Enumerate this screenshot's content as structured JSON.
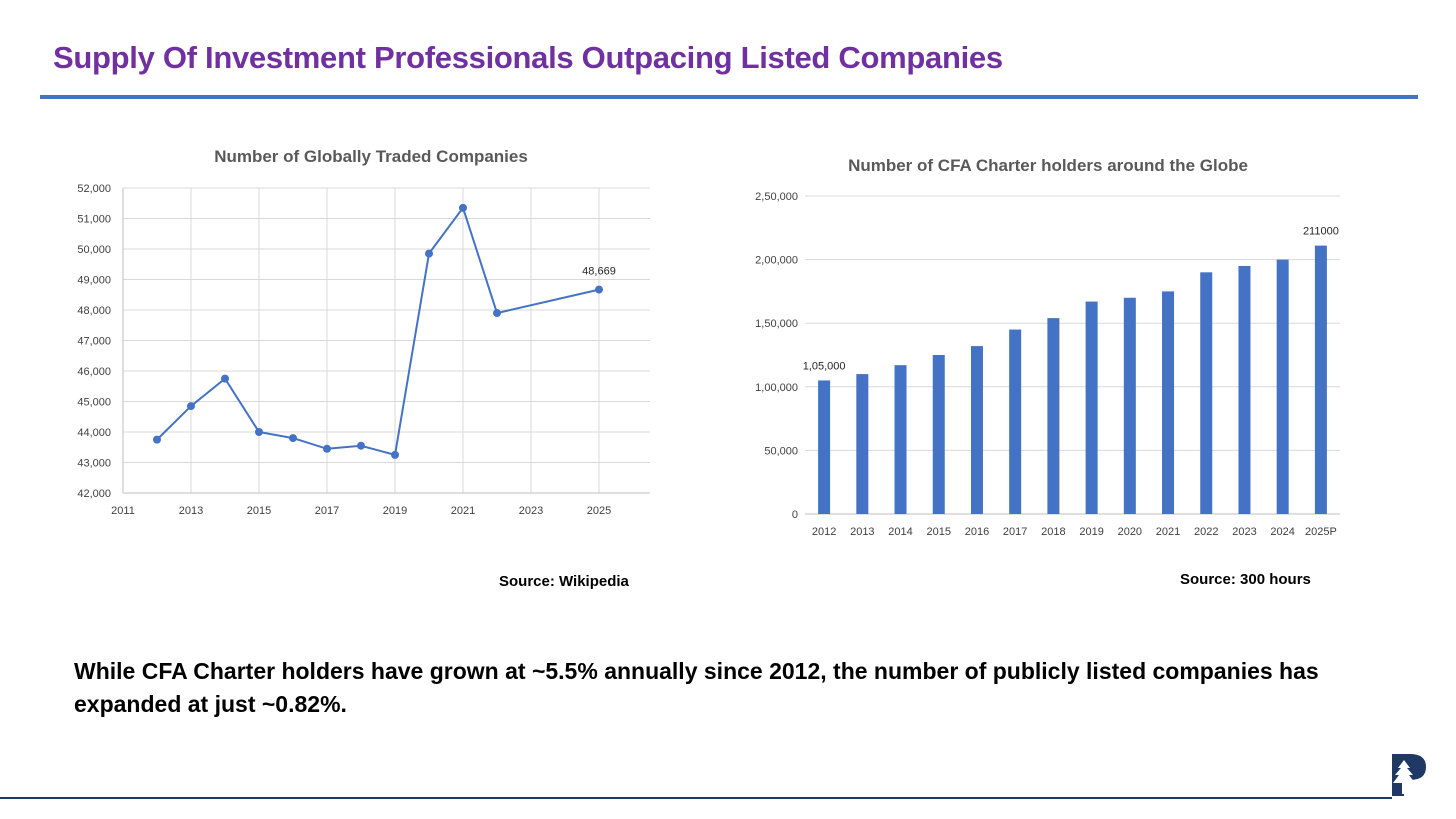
{
  "slide": {
    "title": "Supply Of Investment Professionals Outpacing Listed Companies",
    "summary": "While CFA Charter holders have grown at ~5.5% annually since 2012, the number of publicly listed companies has expanded at just ~0.82%.",
    "logo_icon": "pine-tree-p-logo-icon"
  },
  "colors": {
    "title": "#7030a0",
    "accent": "#4472c4",
    "series": "#4472c4",
    "grid": "#d9d9d9",
    "footer_rule": "#1f3864"
  },
  "chart_data": [
    {
      "type": "line",
      "title": "Number of Globally Traded Companies",
      "xlabel": "",
      "ylabel": "",
      "x": [
        2012,
        2013,
        2014,
        2015,
        2016,
        2017,
        2018,
        2019,
        2020,
        2021,
        2022,
        2025
      ],
      "values": [
        43750,
        44850,
        45750,
        44000,
        43800,
        43450,
        43550,
        43250,
        49850,
        51350,
        47900,
        48669
      ],
      "xlim": [
        2011,
        2026.5
      ],
      "ylim": [
        42000,
        52000
      ],
      "x_ticks": [
        "2011",
        "2013",
        "2015",
        "2017",
        "2019",
        "2021",
        "2023",
        "2025"
      ],
      "y_ticks": [
        "42,000",
        "43,000",
        "44,000",
        "45,000",
        "46,000",
        "47,000",
        "48,000",
        "49,000",
        "50,000",
        "51,000",
        "52,000"
      ],
      "grid": true,
      "annotations": [
        {
          "index": 11,
          "label": "48,669"
        }
      ],
      "source": "Source: Wikipedia"
    },
    {
      "type": "bar",
      "title": "Number of CFA Charter holders around the Globe",
      "xlabel": "",
      "ylabel": "",
      "categories": [
        "2012",
        "2013",
        "2014",
        "2015",
        "2016",
        "2017",
        "2018",
        "2019",
        "2020",
        "2021",
        "2022",
        "2023",
        "2024",
        "2025P"
      ],
      "values": [
        105000,
        110000,
        117000,
        125000,
        132000,
        145000,
        154000,
        167000,
        170000,
        175000,
        190000,
        195000,
        200000,
        211000
      ],
      "ylim": [
        0,
        250000
      ],
      "y_ticks": [
        "0",
        "50,000",
        "1,00,000",
        "1,50,000",
        "2,00,000",
        "2,50,000"
      ],
      "grid": true,
      "annotations": [
        {
          "index": 0,
          "label": "1,05,000"
        },
        {
          "index": 13,
          "label": "211000"
        }
      ],
      "source": "Source: 300 hours"
    }
  ]
}
